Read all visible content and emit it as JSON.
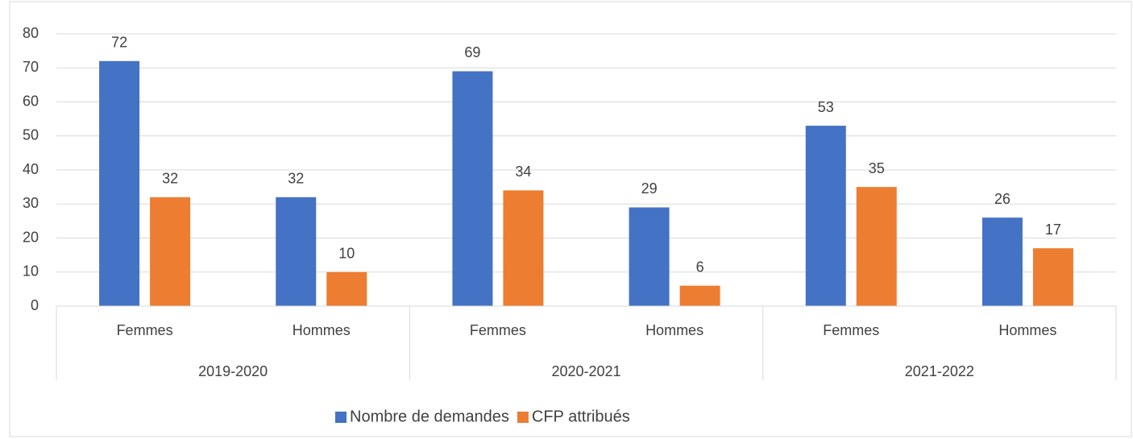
{
  "chart_data": {
    "type": "bar",
    "categories": [
      "Femmes",
      "Hommes",
      "Femmes",
      "Hommes",
      "Femmes",
      "Hommes"
    ],
    "groups": [
      "2019-2020",
      "2020-2021",
      "2021-2022"
    ],
    "series": [
      {
        "name": "Nombre de demandes",
        "color": "#4472c4",
        "values": [
          72,
          32,
          69,
          29,
          53,
          26
        ]
      },
      {
        "name": "CFP attribués",
        "color": "#ed7d31",
        "values": [
          32,
          10,
          34,
          6,
          35,
          17
        ]
      }
    ],
    "ylim": [
      0,
      80
    ],
    "yticks": [
      0,
      10,
      20,
      30,
      40,
      50,
      60,
      70,
      80
    ],
    "grid": true,
    "legend": "bottom"
  }
}
